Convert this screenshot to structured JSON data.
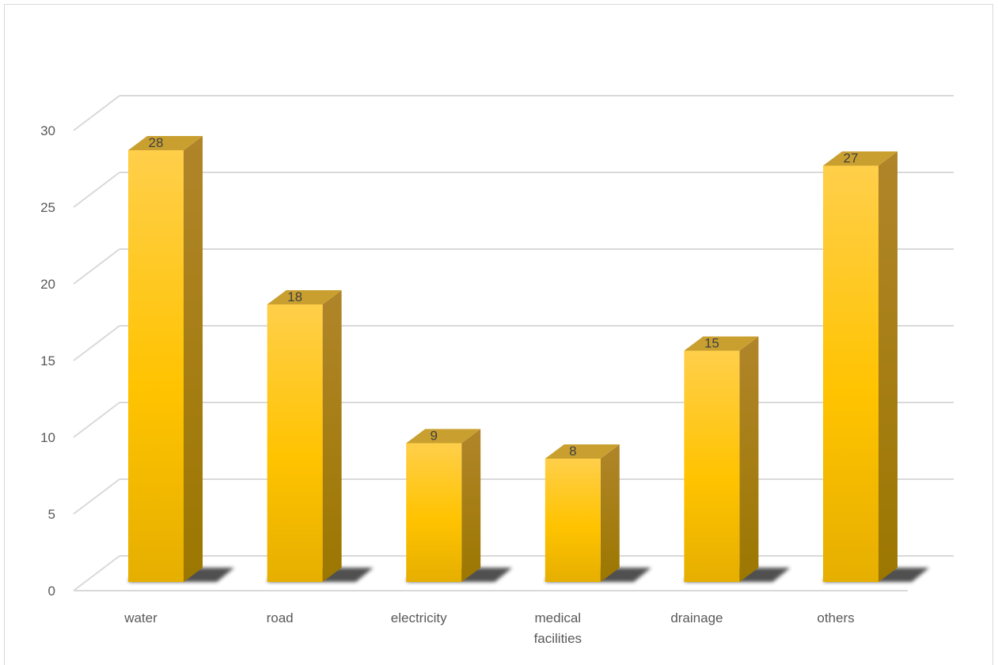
{
  "chart_data": {
    "type": "bar",
    "style": "3d-column",
    "categories": [
      [
        "water"
      ],
      [
        "road"
      ],
      [
        "electricity"
      ],
      [
        "medical",
        "facilities"
      ],
      [
        "drainage"
      ],
      [
        "others"
      ]
    ],
    "values": [
      28,
      18,
      9,
      8,
      15,
      27
    ],
    "ylim": [
      0,
      30
    ],
    "yticks": [
      0,
      5,
      10,
      15,
      20,
      25,
      30
    ],
    "data_labels": [
      "28",
      "18",
      "9",
      "8",
      "15",
      "27"
    ],
    "grid": true,
    "legend": "none",
    "colors": {
      "bar_light": "#ffcf4a",
      "bar_mid": "#ffc300",
      "bar_dark": "#e6af00",
      "side": "#a87f00",
      "top": "#c9a030",
      "grid": "#d9d9d9",
      "shadow": "#333333"
    }
  }
}
